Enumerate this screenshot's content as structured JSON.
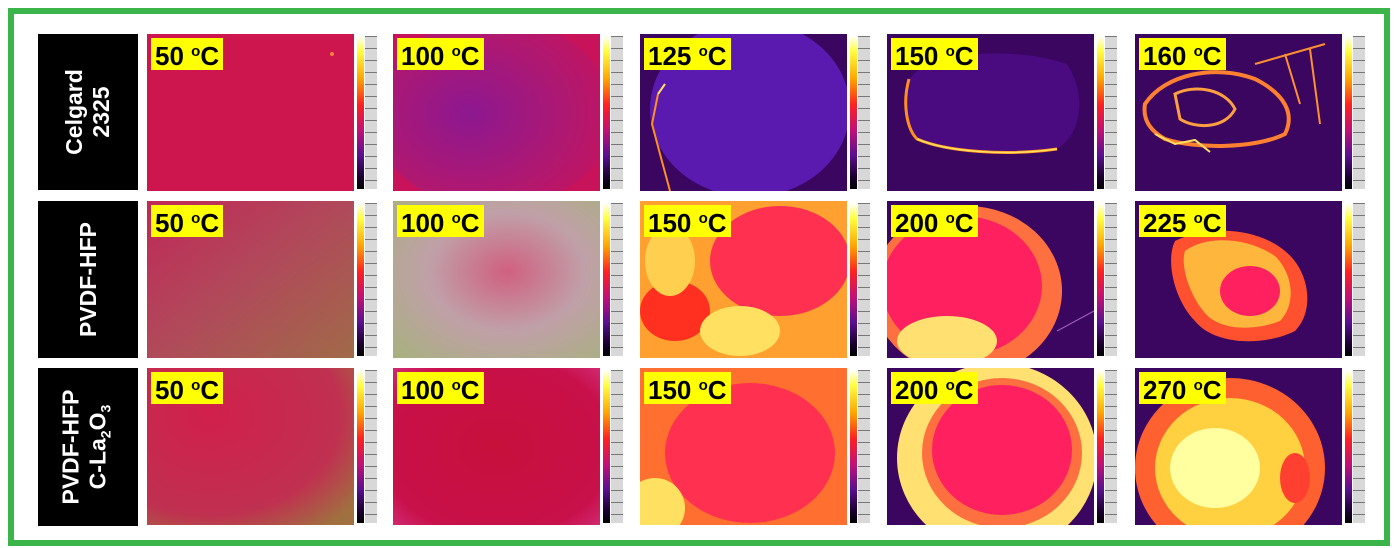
{
  "rows": [
    {
      "label_line1": "Celgard",
      "label_line2": "2325",
      "panels": [
        {
          "temp": "50",
          "unit_sup": "o",
          "unit": "C"
        },
        {
          "temp": "100",
          "unit_sup": "o",
          "unit": "C"
        },
        {
          "temp": "125",
          "unit_sup": "o",
          "unit": "C"
        },
        {
          "temp": "150",
          "unit_sup": "o",
          "unit": "C"
        },
        {
          "temp": "160",
          "unit_sup": "o",
          "unit": "C"
        }
      ]
    },
    {
      "label_line1": "PVDF-HFP",
      "panels": [
        {
          "temp": "50",
          "unit_sup": "o",
          "unit": "C"
        },
        {
          "temp": "100",
          "unit_sup": "o",
          "unit": "C"
        },
        {
          "temp": "150",
          "unit_sup": "o",
          "unit": "C"
        },
        {
          "temp": "200",
          "unit_sup": "o",
          "unit": "C"
        },
        {
          "temp": "225",
          "unit_sup": "o",
          "unit": "C"
        }
      ]
    },
    {
      "label_line1": "PVDF-HFP",
      "label_line2_pre": "C-La",
      "label_line2_sub1": "2",
      "label_line2_mid": "O",
      "label_line2_sub2": "3",
      "panels": [
        {
          "temp": "50",
          "unit_sup": "o",
          "unit": "C"
        },
        {
          "temp": "100",
          "unit_sup": "o",
          "unit": "C"
        },
        {
          "temp": "150",
          "unit_sup": "o",
          "unit": "C"
        },
        {
          "temp": "200",
          "unit_sup": "o",
          "unit": "C"
        },
        {
          "temp": "270",
          "unit_sup": "o",
          "unit": "C"
        }
      ]
    }
  ],
  "colors": {
    "frame_border": "#3bb54a",
    "label_background": "#000000",
    "temp_badge": "#ffff00",
    "cold_background": "#3a0660"
  }
}
